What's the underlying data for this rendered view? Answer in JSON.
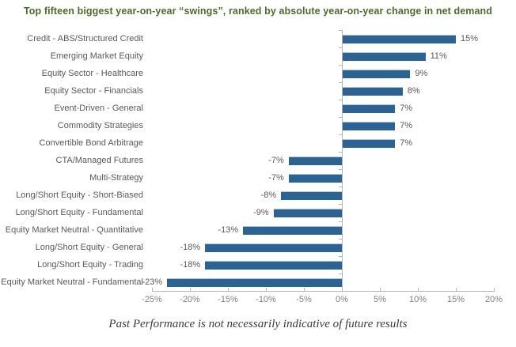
{
  "title": "Top fifteen biggest year-on-year “swings”, ranked by absolute year-on-year change in net demand",
  "footer": "Past Performance is not necessarily indicative of future results",
  "colors": {
    "bar": "#2B6394",
    "title_text": "#4E6A28",
    "axis_line": "#B3B3B3",
    "category_label": "#595959",
    "data_label": "#595959",
    "tick_label": "#7F7F7F",
    "footer_text": "#3B3B3B",
    "background": "#FFFFFF"
  },
  "chart_data": {
    "type": "bar",
    "orientation": "horizontal",
    "title": "Top fifteen biggest year-on-year “swings”, ranked by absolute year-on-year change in net demand",
    "xlabel": "",
    "ylabel": "",
    "grid": false,
    "legend": false,
    "xlim": [
      -25,
      20
    ],
    "xticks": [
      -25,
      -20,
      -15,
      -10,
      -5,
      0,
      5,
      10,
      15,
      20
    ],
    "xtick_labels": [
      "-25%",
      "-20%",
      "-15%",
      "-10%",
      "-5%",
      "0%",
      "5%",
      "10%",
      "15%",
      "20%"
    ],
    "categories": [
      "Credit - ABS/Structured Credit",
      "Emerging Market Equity",
      "Equity Sector - Healthcare",
      "Equity Sector - Financials",
      "Event-Driven - General",
      "Commodity Strategies",
      "Convertible Bond Arbitrage",
      "CTA/Managed Futures",
      "Multi-Strategy",
      "Long/Short Equity - Short-Biased",
      "Long/Short Equity - Fundamental",
      "Equity Market Neutral - Quantitative",
      "Long/Short Equity - General",
      "Long/Short Equity - Trading",
      "Equity Market Neutral - Fundamental"
    ],
    "values": [
      15,
      11,
      9,
      8,
      7,
      7,
      7,
      -7,
      -7,
      -8,
      -9,
      -13,
      -18,
      -18,
      -23
    ],
    "value_labels": [
      "15%",
      "11%",
      "9%",
      "8%",
      "7%",
      "7%",
      "7%",
      "-7%",
      "-7%",
      "-8%",
      "-9%",
      "-13%",
      "-18%",
      "-18%",
      "-23%"
    ]
  }
}
